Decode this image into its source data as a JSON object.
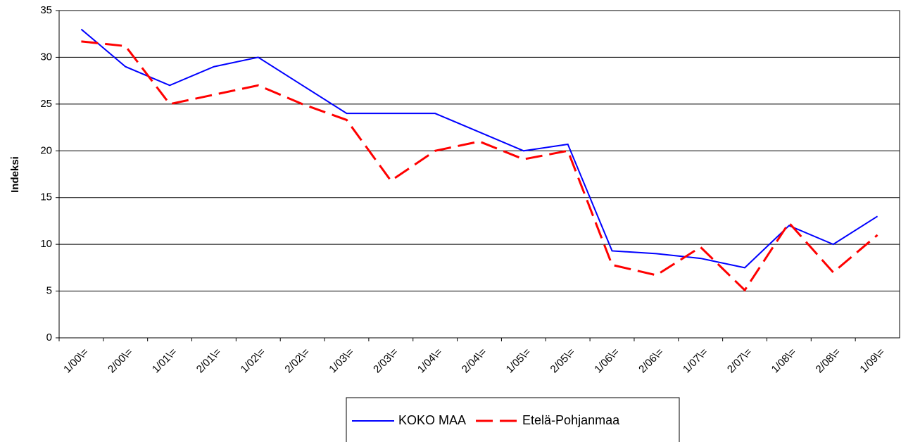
{
  "chart_data": {
    "type": "line",
    "y_label": "Indeksi",
    "categories": [
      "1/00\\=",
      "2/00\\=",
      "1/01\\=",
      "2/01\\=",
      "1/02\\=",
      "2/02\\=",
      "1/03\\=",
      "2/03\\=",
      "1/04\\=",
      "2/04\\=",
      "1/05\\=",
      "2/05\\=",
      "1/06\\=",
      "2/06\\=",
      "1/07\\=",
      "2/07\\=",
      "1/08\\=",
      "2/08\\=",
      "1/09\\="
    ],
    "series": [
      {
        "name": "KOKO MAA",
        "color": "#0000ff",
        "dashed": false,
        "values": [
          33,
          29,
          27,
          29,
          30,
          27,
          24,
          24,
          24,
          22,
          20,
          20.7,
          9.3,
          9,
          8.5,
          7.5,
          12,
          10,
          13
        ]
      },
      {
        "name": "Etelä-Pohjanmaa",
        "color": "#ff0000",
        "dashed": true,
        "values": [
          31.7,
          31.2,
          25,
          26,
          27,
          25,
          23.3,
          16.8,
          20,
          21,
          19.1,
          20,
          7.8,
          6.7,
          9.7,
          5.1,
          12.3,
          7,
          11
        ]
      }
    ],
    "ylim": [
      0,
      35
    ],
    "yticks": [
      0,
      5,
      10,
      15,
      20,
      25,
      30,
      35
    ],
    "grid": true,
    "legend": "bottom"
  }
}
